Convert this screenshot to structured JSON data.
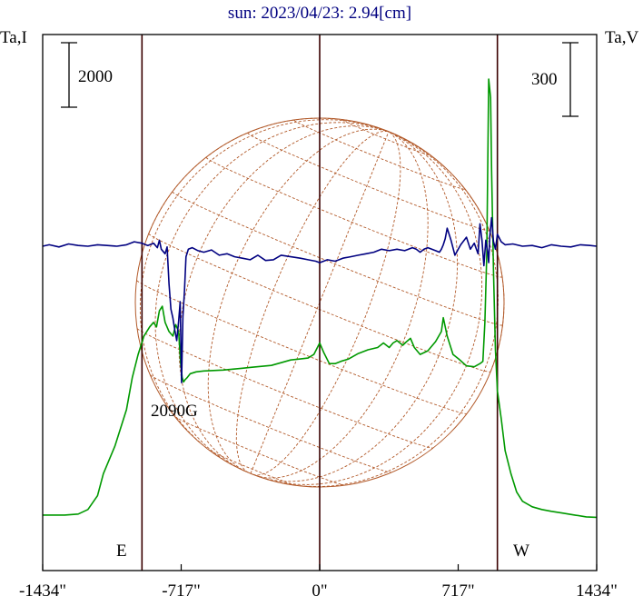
{
  "chart_data": {
    "type": "line",
    "title": "sun: 2023/04/23: 2.94[cm]",
    "ylabel_left": "Ta,I",
    "ylabel_right": "Ta,V",
    "xlim": [
      -1434,
      1434
    ],
    "x_ticks": [
      {
        "value": -1434,
        "label": "-1434\""
      },
      {
        "value": -717,
        "label": "-717\""
      },
      {
        "value": 0,
        "label": "0\""
      },
      {
        "value": 717,
        "label": "717\""
      },
      {
        "value": 1434,
        "label": "1434\""
      }
    ],
    "vertical_lines": [
      -920,
      0,
      920
    ],
    "limb_labels": {
      "east": "E",
      "west": "W"
    },
    "scale_bars": {
      "left": "2000",
      "right": "300"
    },
    "annotations": [
      {
        "text": "2090G",
        "x": -715
      }
    ],
    "colors": {
      "total_intensity": "#009900",
      "polarization": "#000080",
      "disk": "#b25a2a",
      "axis": "#000000",
      "vertical_lines": "#3a0000",
      "title": "#000080"
    },
    "series": [
      {
        "key": "total_intensity",
        "x": [
          -1434,
          -1320,
          -1250,
          -1200,
          -1150,
          -1120,
          -1060,
          -1000,
          -970,
          -940,
          -910,
          -880,
          -860,
          -845,
          -830,
          -815,
          -800,
          -780,
          -760,
          -745,
          -730,
          -720,
          -712,
          -705,
          -697,
          -685,
          -670,
          -640,
          -600,
          -550,
          -500,
          -450,
          -400,
          -350,
          -300,
          -250,
          -200,
          -150,
          -100,
          -60,
          -30,
          0,
          20,
          50,
          80,
          110,
          150,
          200,
          250,
          300,
          330,
          360,
          380,
          400,
          430,
          450,
          470,
          490,
          520,
          560,
          600,
          630,
          640,
          660,
          690,
          720,
          760,
          800,
          830,
          845,
          855,
          865,
          875,
          885,
          890,
          900,
          910,
          920,
          940,
          960,
          990,
          1020,
          1050,
          1100,
          1150,
          1200,
          1260,
          1320,
          1380,
          1434
        ],
        "values": [
          300,
          300,
          320,
          420,
          720,
          1200,
          1800,
          2600,
          3300,
          3800,
          4200,
          4400,
          4500,
          4400,
          4750,
          4850,
          4500,
          4300,
          4200,
          4450,
          4300,
          3600,
          3300,
          3200,
          3250,
          3300,
          3380,
          3420,
          3440,
          3450,
          3460,
          3480,
          3500,
          3520,
          3540,
          3560,
          3620,
          3680,
          3700,
          3720,
          3800,
          4050,
          3850,
          3600,
          3600,
          3650,
          3700,
          3820,
          3900,
          3950,
          4050,
          3950,
          4050,
          4100,
          4000,
          4080,
          4150,
          3950,
          3800,
          3880,
          4080,
          4300,
          4600,
          4200,
          3800,
          3700,
          3550,
          3530,
          3600,
          3650,
          4500,
          6000,
          9800,
          9400,
          7800,
          5600,
          3900,
          3000,
          2400,
          1700,
          1200,
          800,
          600,
          480,
          420,
          380,
          340,
          300,
          260,
          250
        ]
      },
      {
        "key": "polarization",
        "x": [
          -1434,
          -1400,
          -1350,
          -1300,
          -1250,
          -1200,
          -1150,
          -1100,
          -1050,
          -1000,
          -960,
          -920,
          -890,
          -860,
          -840,
          -830,
          -820,
          -800,
          -790,
          -780,
          -770,
          -760,
          -750,
          -740,
          -730,
          -722,
          -715,
          -708,
          -700,
          -692,
          -680,
          -660,
          -630,
          -600,
          -560,
          -520,
          -480,
          -440,
          -400,
          -360,
          -320,
          -280,
          -240,
          -200,
          -150,
          -100,
          -60,
          -20,
          0,
          40,
          80,
          120,
          160,
          200,
          240,
          280,
          320,
          360,
          400,
          440,
          480,
          500,
          520,
          540,
          560,
          580,
          600,
          620,
          630,
          640,
          650,
          660,
          680,
          700,
          730,
          760,
          780,
          800,
          820,
          830,
          840,
          850,
          860,
          870,
          875,
          880,
          890,
          900,
          910,
          920,
          940,
          960,
          1000,
          1050,
          1100,
          1150,
          1200,
          1250,
          1300,
          1350,
          1400,
          1434
        ],
        "values": [
          0,
          10,
          -5,
          15,
          5,
          0,
          10,
          5,
          0,
          10,
          30,
          20,
          5,
          20,
          -10,
          40,
          -20,
          -50,
          -5,
          -250,
          -420,
          -480,
          -560,
          -630,
          -500,
          -370,
          -910,
          -470,
          -300,
          -70,
          -20,
          -10,
          -30,
          -40,
          -25,
          -60,
          -50,
          -70,
          -80,
          -90,
          -60,
          -95,
          -90,
          -60,
          -70,
          -80,
          -90,
          -100,
          -110,
          -90,
          -100,
          -80,
          -70,
          -60,
          -50,
          -40,
          -20,
          -30,
          -20,
          -30,
          -10,
          -20,
          -40,
          -20,
          -10,
          -20,
          -30,
          -40,
          -20,
          10,
          50,
          120,
          40,
          -60,
          10,
          60,
          -20,
          20,
          -50,
          150,
          40,
          -130,
          40,
          -40,
          -110,
          60,
          190,
          30,
          -20,
          80,
          30,
          10,
          15,
          0,
          5,
          -10,
          10,
          0,
          -5,
          10,
          5,
          0
        ]
      }
    ]
  }
}
